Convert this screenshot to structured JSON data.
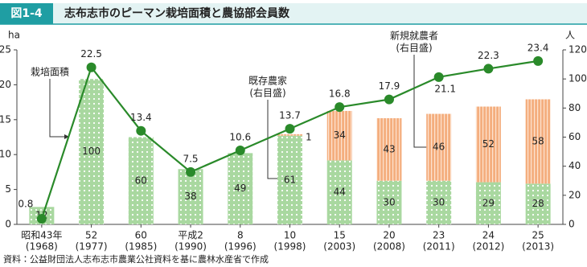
{
  "chart_data": {
    "type": "combo",
    "figure_label": "図1-4",
    "title": "志布志市のピーマン栽培面積と農協部会員数",
    "source": "資料：公益財団法人志布志市農業公社資料を基に農林水産省で作成",
    "y_label": "ha",
    "y2_label": "人",
    "categories": [
      "昭和43年",
      "52",
      "60",
      "平成2",
      "8",
      "10",
      "15",
      "20",
      "23",
      "24",
      "25"
    ],
    "category_years": [
      "(1968)",
      "(1977)",
      "(1985)",
      "(1990)",
      "(1996)",
      "(1998)",
      "(2003)",
      "(2008)",
      "(2011)",
      "(2012)",
      "(2013)"
    ],
    "ylim": [
      0,
      25
    ],
    "yticks": [
      0,
      5,
      10,
      15,
      20,
      25
    ],
    "y2lim": [
      0,
      120
    ],
    "y2ticks": [
      0,
      20,
      40,
      60,
      80,
      100,
      120
    ],
    "series": [
      {
        "name": "栽培面積",
        "type": "line",
        "axis": "y",
        "color": "#2a8a2a",
        "values": [
          0.8,
          22.5,
          13.4,
          7.5,
          10.6,
          13.7,
          16.8,
          17.9,
          21.1,
          22.3,
          23.4
        ]
      },
      {
        "name": "既存農家",
        "axis_note": "(右目盛)",
        "type": "bar",
        "axis": "y2",
        "color": "#a9d8a0",
        "values": [
          12,
          100,
          60,
          38,
          49,
          61,
          44,
          30,
          30,
          29,
          28
        ]
      },
      {
        "name": "新規就農者",
        "axis_note": "(右目盛)",
        "type": "bar",
        "axis": "y2",
        "color": "#f4ae7e",
        "values": [
          null,
          null,
          null,
          null,
          null,
          1,
          34,
          43,
          46,
          52,
          58
        ]
      }
    ]
  }
}
